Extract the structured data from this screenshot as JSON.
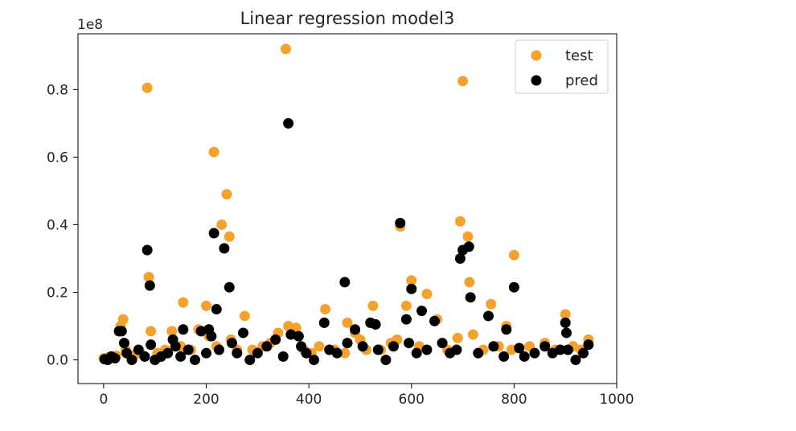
{
  "chart_data": {
    "type": "scatter",
    "title": "Linear regression model3",
    "xlabel": "",
    "ylabel": "",
    "y_offset_label": "1e8",
    "xlim": [
      -50,
      1000
    ],
    "ylim": [
      -0.07,
      0.965
    ],
    "x_ticks": [
      0,
      200,
      400,
      600,
      800,
      1000
    ],
    "x_tick_labels": [
      "0",
      "200",
      "400",
      "600",
      "800",
      "1000"
    ],
    "y_ticks": [
      0.0,
      0.2,
      0.4,
      0.6,
      0.8
    ],
    "y_tick_labels": [
      "0.0",
      "0.2",
      "0.4",
      "0.6",
      "0.8"
    ],
    "grid": false,
    "legend_position": "top-right",
    "series": [
      {
        "name": "test",
        "color": "#f5a12d",
        "x": [
          0,
          10,
          25,
          33,
          38,
          43,
          60,
          72,
          85,
          88,
          92,
          105,
          120,
          133,
          150,
          155,
          170,
          185,
          200,
          205,
          215,
          220,
          230,
          240,
          245,
          248,
          260,
          275,
          290,
          310,
          325,
          340,
          355,
          360,
          375,
          390,
          405,
          420,
          432,
          450,
          470,
          475,
          490,
          500,
          512,
          525,
          540,
          560,
          572,
          578,
          590,
          600,
          615,
          630,
          650,
          670,
          690,
          695,
          700,
          710,
          713,
          720,
          740,
          755,
          770,
          785,
          795,
          800,
          830,
          860,
          880,
          900,
          915,
          930,
          945
        ],
        "y": [
          0.005,
          0.008,
          0.012,
          0.1,
          0.12,
          0.03,
          0.015,
          0.02,
          0.805,
          0.245,
          0.085,
          0.02,
          0.03,
          0.085,
          0.04,
          0.17,
          0.03,
          0.09,
          0.16,
          0.07,
          0.615,
          0.04,
          0.4,
          0.49,
          0.365,
          0.06,
          0.03,
          0.13,
          0.03,
          0.04,
          0.05,
          0.08,
          0.92,
          0.1,
          0.095,
          0.03,
          0.02,
          0.04,
          0.15,
          0.03,
          0.02,
          0.11,
          0.08,
          0.06,
          0.03,
          0.16,
          0.03,
          0.05,
          0.06,
          0.395,
          0.16,
          0.235,
          0.04,
          0.195,
          0.12,
          0.03,
          0.065,
          0.41,
          0.825,
          0.365,
          0.23,
          0.075,
          0.03,
          0.165,
          0.04,
          0.1,
          0.03,
          0.31,
          0.04,
          0.05,
          0.03,
          0.135,
          0.04,
          0.03,
          0.06
        ]
      },
      {
        "name": "pred",
        "color": "#000000",
        "x": [
          2,
          8,
          15,
          22,
          30,
          35,
          40,
          45,
          55,
          68,
          80,
          85,
          90,
          92,
          100,
          112,
          125,
          135,
          140,
          150,
          155,
          165,
          178,
          190,
          200,
          205,
          210,
          215,
          220,
          225,
          235,
          245,
          250,
          260,
          272,
          285,
          300,
          318,
          335,
          350,
          360,
          365,
          380,
          385,
          395,
          410,
          430,
          440,
          455,
          470,
          475,
          490,
          505,
          520,
          530,
          535,
          550,
          565,
          578,
          590,
          595,
          600,
          610,
          620,
          630,
          645,
          660,
          675,
          688,
          695,
          700,
          712,
          715,
          730,
          750,
          760,
          780,
          785,
          800,
          810,
          820,
          840,
          860,
          875,
          890,
          900,
          902,
          905,
          920,
          935,
          945
        ],
        "y": [
          0.002,
          0.0,
          0.01,
          0.005,
          0.085,
          0.085,
          0.05,
          0.02,
          0.0,
          0.03,
          0.01,
          0.325,
          0.22,
          0.045,
          0.0,
          0.01,
          0.02,
          0.06,
          0.04,
          0.01,
          0.09,
          0.03,
          0.0,
          0.085,
          0.02,
          0.09,
          0.07,
          0.375,
          0.15,
          0.03,
          0.33,
          0.215,
          0.05,
          0.02,
          0.08,
          0.0,
          0.02,
          0.04,
          0.06,
          0.01,
          0.7,
          0.075,
          0.07,
          0.04,
          0.02,
          0.0,
          0.11,
          0.03,
          0.02,
          0.23,
          0.05,
          0.09,
          0.04,
          0.11,
          0.105,
          0.03,
          0.0,
          0.04,
          0.405,
          0.12,
          0.05,
          0.21,
          0.02,
          0.145,
          0.03,
          0.115,
          0.05,
          0.02,
          0.03,
          0.3,
          0.325,
          0.335,
          0.185,
          0.02,
          0.13,
          0.04,
          0.01,
          0.09,
          0.215,
          0.035,
          0.01,
          0.02,
          0.04,
          0.02,
          0.03,
          0.11,
          0.08,
          0.03,
          0.0,
          0.02,
          0.045
        ]
      }
    ]
  }
}
